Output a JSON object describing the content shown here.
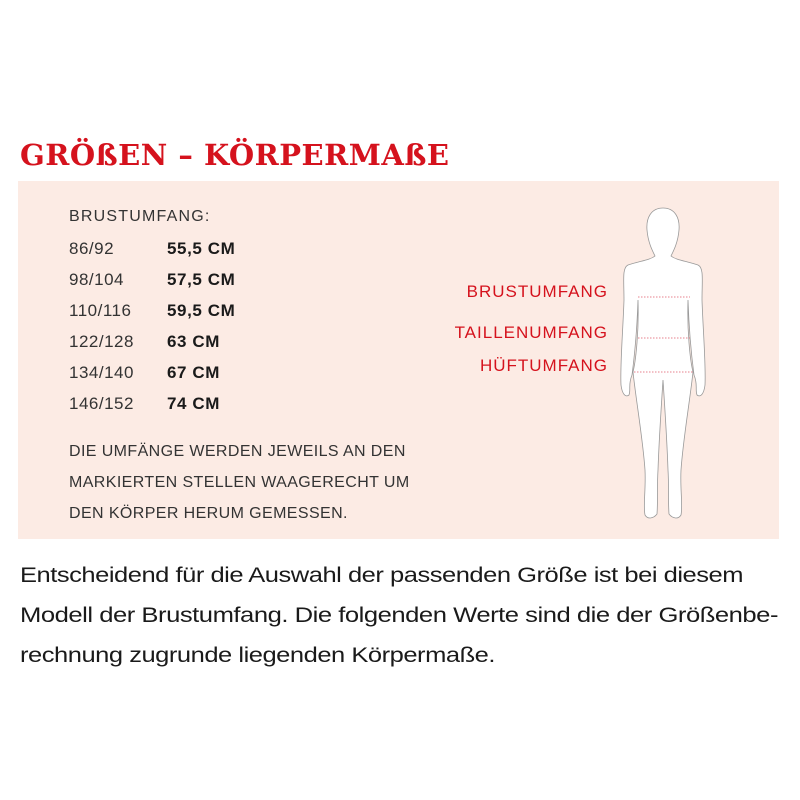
{
  "title": "GRÖßEN – KÖRPERMAßE",
  "panel": {
    "table_header": "BRUSTUMFANG:",
    "rows": [
      {
        "size": "86/92",
        "value": "55,5 CM"
      },
      {
        "size": "98/104",
        "value": "57,5 CM"
      },
      {
        "size": "110/116",
        "value": "59,5 CM"
      },
      {
        "size": "122/128",
        "value": "63 CM"
      },
      {
        "size": "134/140",
        "value": "67 CM"
      },
      {
        "size": "146/152",
        "value": "74 CM"
      }
    ],
    "note_lines": [
      "DIE UMFÄNGE WERDEN JEWEILS AN DEN",
      "MARKIERTEN STELLEN WAAGERECHT UM",
      "DEN KÖRPER HERUM GEMESSEN."
    ],
    "figure_labels": {
      "chest": "BRUSTUMFANG",
      "waist": "TAILLENUMFANG",
      "hip": "HÜFTUMFANG"
    },
    "colors": {
      "accent": "#d5121d",
      "panel_bg": "#fcebe4"
    }
  },
  "body_lines": [
    "Entscheidend für die Auswahl der passenden Größe ist bei diesem",
    "Modell der Brustumfang. Die folgenden Werte sind die der Größenbe-",
    "rechnung zugrunde liegenden Körpermaße."
  ]
}
